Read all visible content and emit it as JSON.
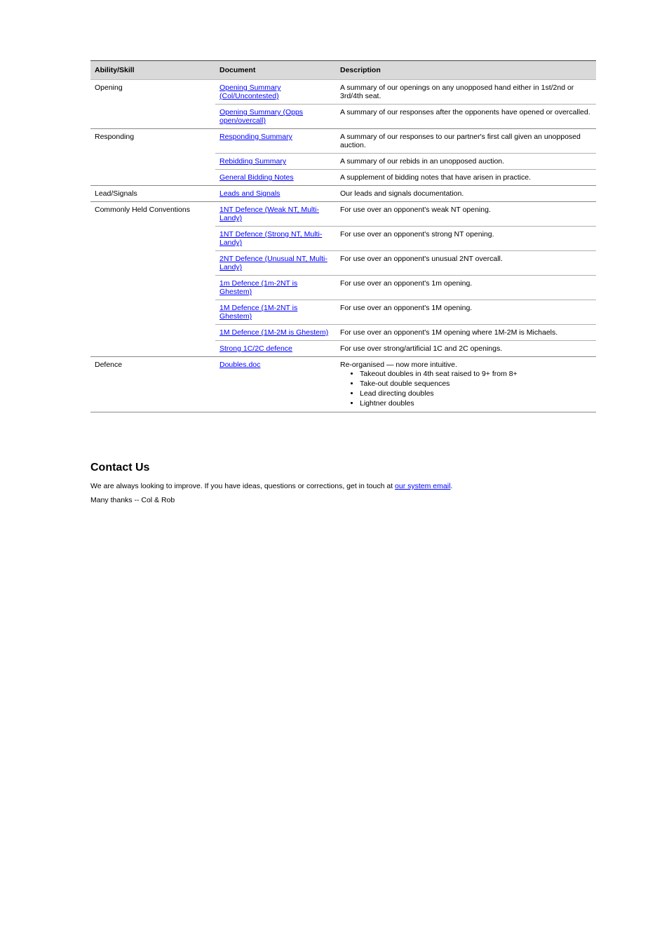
{
  "table": {
    "columns": [
      "Ability/Skill",
      "Document",
      "Description"
    ],
    "col_widths": [
      "178px",
      "172px",
      "auto"
    ],
    "groups": [
      {
        "label": "Opening",
        "rows": [
          {
            "link": "Opening Summary (Col/Uncontested)",
            "desc": "A summary of our openings on any unopposed hand either in 1st/2nd or 3rd/4th seat."
          },
          {
            "link": "Opening Summary (Opps open/overcall)",
            "desc": "A summary of our responses after the opponents have opened or overcalled."
          }
        ]
      },
      {
        "label": "Responding",
        "rows": [
          {
            "link": "Responding Summary",
            "desc": "A summary of our responses to our partner's first call given an unopposed auction."
          },
          {
            "link": "Rebidding Summary",
            "desc": "A summary of our rebids in an unopposed auction."
          },
          {
            "link": "General Bidding Notes",
            "desc": "A supplement of bidding notes that have arisen in practice."
          }
        ]
      },
      {
        "label": "Lead/Signals",
        "rows": [
          {
            "link": "Leads and Signals",
            "desc": "Our leads and signals documentation."
          }
        ]
      },
      {
        "label": "Commonly Held Conventions",
        "rows": [
          {
            "link": "1NT Defence (Weak NT, Multi-Landy)",
            "desc": "For use over an opponent's weak NT opening."
          },
          {
            "link": "1NT Defence (Strong NT, Multi-Landy)",
            "desc": "For use over an opponent's strong NT opening."
          },
          {
            "link": "2NT Defence (Unusual NT, Multi-Landy)",
            "desc": "For use over an opponent's unusual 2NT overcall."
          },
          {
            "link": "1m Defence (1m-2NT is Ghestem)",
            "desc": "For use over an opponent's 1m opening."
          },
          {
            "link": "1M Defence (1M-2NT is Ghestem)",
            "desc": "For use over an opponent's 1M opening."
          },
          {
            "link": "1M Defence (1M-2M is Ghestem)",
            "desc": "For use over an opponent's 1M opening where 1M-2M is Michaels."
          },
          {
            "link": "Strong 1C/2C defence",
            "desc": "For use over strong/artificial 1C and 2C openings."
          }
        ]
      },
      {
        "label": "Defence",
        "rows": [
          {
            "link": "Doubles.doc",
            "desc_pre": "Re-organised — now more intuitive.",
            "bullets": [
              "Takeout doubles in 4th seat raised to 9+ from 8+",
              "Take-out double sequences",
              "Lead directing doubles",
              "Lightner doubles"
            ]
          }
        ]
      }
    ]
  },
  "contact": {
    "heading": "Contact Us",
    "line1": "We are always looking to improve. If you have ideas, questions or corrections, get in touch at ",
    "link_text": "our system email",
    "line2": "Many thanks -- Col & Rob"
  }
}
